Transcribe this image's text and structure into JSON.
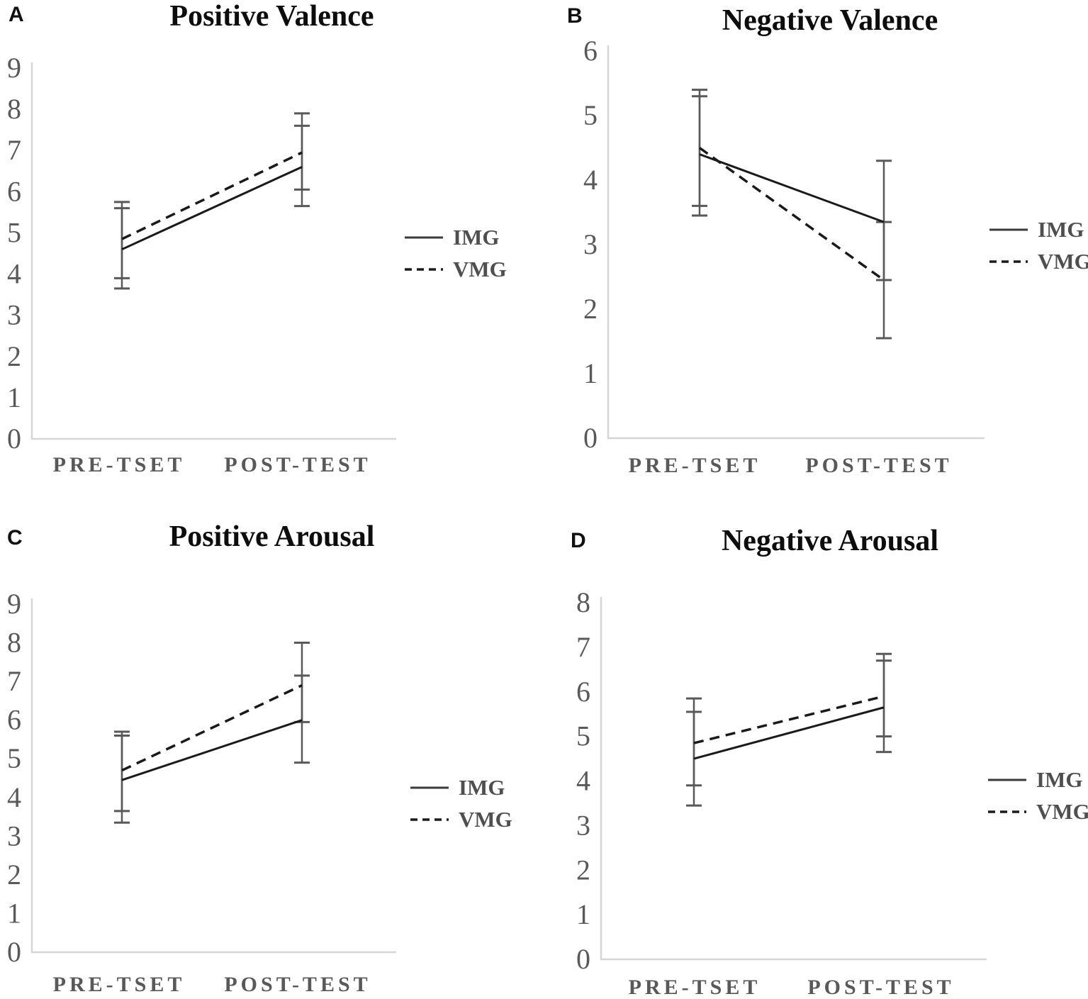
{
  "figure": {
    "colors": {
      "line": "#1a1a1a",
      "error": "#595959",
      "axis": "#d6d6d6",
      "tick_label": "#595959",
      "title": "#0d0d0d",
      "xlabel": "#595959",
      "legend_label": "#4f4f4f"
    }
  },
  "chart_data": [
    {
      "id": "A",
      "type": "line",
      "title": "Positive Valence",
      "categories": [
        "PRE-TSET",
        "POST-TEST"
      ],
      "xlabel": "",
      "ylabel": "",
      "ylim": [
        0,
        9
      ],
      "yticks": [
        0,
        1,
        2,
        3,
        4,
        5,
        6,
        7,
        8,
        9
      ],
      "grid": "off",
      "legend_position": "right",
      "series": [
        {
          "name": "IMG",
          "dash": "solid",
          "values": [
            4.6,
            6.6
          ],
          "err_low": [
            3.65,
            5.65
          ],
          "err_high": [
            5.6,
            7.6
          ]
        },
        {
          "name": "VMG",
          "dash": "dashed",
          "values": [
            4.85,
            6.95
          ],
          "err_low": [
            3.9,
            6.05
          ],
          "err_high": [
            5.75,
            7.9
          ]
        }
      ]
    },
    {
      "id": "B",
      "type": "line",
      "title": "Negative Valence",
      "categories": [
        "PRE-TSET",
        "POST-TEST"
      ],
      "xlabel": "",
      "ylabel": "",
      "ylim": [
        0,
        6
      ],
      "yticks": [
        0,
        1,
        2,
        3,
        4,
        5,
        6
      ],
      "grid": "off",
      "legend_position": "right",
      "series": [
        {
          "name": "IMG",
          "dash": "solid",
          "values": [
            4.4,
            3.35
          ],
          "err_low": [
            3.45,
            2.45
          ],
          "err_high": [
            5.3,
            4.3
          ]
        },
        {
          "name": "VMG",
          "dash": "dashed",
          "values": [
            4.5,
            2.45
          ],
          "err_low": [
            3.6,
            1.55
          ],
          "err_high": [
            5.4,
            3.35
          ]
        }
      ]
    },
    {
      "id": "C",
      "type": "line",
      "title": "Positive Arousal",
      "categories": [
        "PRE-TSET",
        "POST-TEST"
      ],
      "xlabel": "",
      "ylabel": "",
      "ylim": [
        0,
        9
      ],
      "yticks": [
        0,
        1,
        2,
        3,
        4,
        5,
        6,
        7,
        8,
        9
      ],
      "grid": "off",
      "legend_position": "right",
      "series": [
        {
          "name": "IMG",
          "dash": "solid",
          "values": [
            4.45,
            6.0
          ],
          "err_low": [
            3.35,
            4.9
          ],
          "err_high": [
            5.6,
            7.15
          ]
        },
        {
          "name": "VMG",
          "dash": "dashed",
          "values": [
            4.7,
            6.9
          ],
          "err_low": [
            3.65,
            5.95
          ],
          "err_high": [
            5.7,
            8.0
          ]
        }
      ]
    },
    {
      "id": "D",
      "type": "line",
      "title": "Negative Arousal",
      "categories": [
        "PRE-TSET",
        "POST-TEST"
      ],
      "xlabel": "",
      "ylabel": "",
      "ylim": [
        0,
        8
      ],
      "yticks": [
        0,
        1,
        2,
        3,
        4,
        5,
        6,
        7,
        8
      ],
      "grid": "off",
      "legend_position": "right",
      "series": [
        {
          "name": "IMG",
          "dash": "solid",
          "values": [
            4.5,
            5.65
          ],
          "err_low": [
            3.45,
            4.65
          ],
          "err_high": [
            5.55,
            6.7
          ]
        },
        {
          "name": "VMG",
          "dash": "dashed",
          "values": [
            4.85,
            5.9
          ],
          "err_low": [
            3.9,
            5.0
          ],
          "err_high": [
            5.85,
            6.85
          ]
        }
      ]
    }
  ]
}
